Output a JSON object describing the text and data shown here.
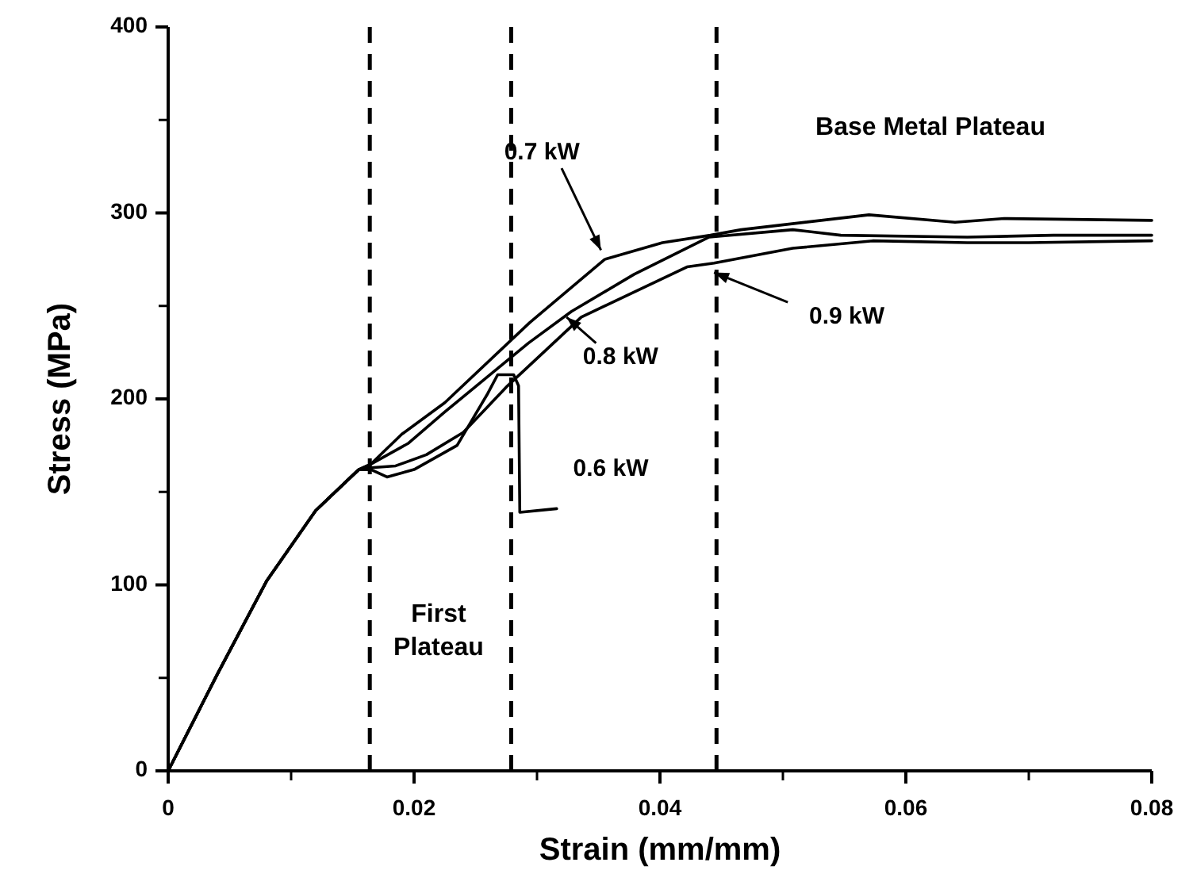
{
  "chart_data": {
    "type": "line",
    "xlabel": "Strain (mm/mm)",
    "ylabel": "Stress (MPa)",
    "xlim": [
      0,
      0.08
    ],
    "xticks": [
      0,
      0.02,
      0.04,
      0.06,
      0.08
    ],
    "ylim": [
      0,
      400
    ],
    "yticks": [
      0,
      100,
      200,
      300,
      400
    ],
    "grid": false,
    "marker": "none",
    "line_style": "solid",
    "series": [
      {
        "name": "0.7 kW",
        "color": "#000000",
        "x": [
          0,
          0.004,
          0.008,
          0.012,
          0.0155,
          0.0165,
          0.019,
          0.0225,
          0.0294,
          0.0355,
          0.0402,
          0.0441,
          0.0466,
          0.057,
          0.064,
          0.068,
          0.08
        ],
        "values": [
          0,
          52,
          102,
          140,
          162,
          165,
          181,
          198,
          241,
          275,
          284,
          288,
          291,
          299,
          295,
          297,
          296
        ]
      },
      {
        "name": "0.8 kW",
        "color": "#000000",
        "x": [
          0,
          0.004,
          0.008,
          0.012,
          0.0155,
          0.0165,
          0.0195,
          0.0225,
          0.0293,
          0.0328,
          0.0379,
          0.044,
          0.0508,
          0.0547,
          0.065,
          0.072,
          0.08
        ],
        "values": [
          0,
          52,
          102,
          140,
          162,
          165,
          176,
          193,
          230,
          247,
          267,
          287,
          291,
          288,
          287,
          288,
          288
        ]
      },
      {
        "name": "0.9 kW",
        "color": "#000000",
        "x": [
          0,
          0.004,
          0.008,
          0.012,
          0.0155,
          0.0165,
          0.0185,
          0.021,
          0.024,
          0.0276,
          0.0336,
          0.0422,
          0.0444,
          0.0508,
          0.0573,
          0.065,
          0.07,
          0.08
        ],
        "values": [
          0,
          52,
          102,
          140,
          162,
          163,
          164,
          170,
          182,
          207,
          244,
          271,
          273,
          281,
          285,
          284,
          284,
          285
        ]
      },
      {
        "name": "0.6 kW",
        "color": "#000000",
        "x": [
          0,
          0.004,
          0.008,
          0.012,
          0.0155,
          0.0165,
          0.0178,
          0.02,
          0.0235,
          0.026,
          0.0268,
          0.0281,
          0.0285,
          0.0286,
          0.0316
        ],
        "values": [
          0,
          52,
          102,
          140,
          162,
          162,
          158,
          162,
          175,
          203,
          213,
          213,
          207,
          139,
          141
        ]
      }
    ],
    "ref_lines": [
      {
        "axis": "x",
        "value": 0.0164,
        "line_style": "dashed",
        "color": "#000000"
      },
      {
        "axis": "x",
        "value": 0.0279,
        "line_style": "dashed",
        "color": "#000000"
      },
      {
        "axis": "x",
        "value": 0.0446,
        "line_style": "dashed",
        "color": "#000000"
      }
    ],
    "annotations": [
      "First\nPlateau",
      "Base Metal Plateau"
    ]
  }
}
